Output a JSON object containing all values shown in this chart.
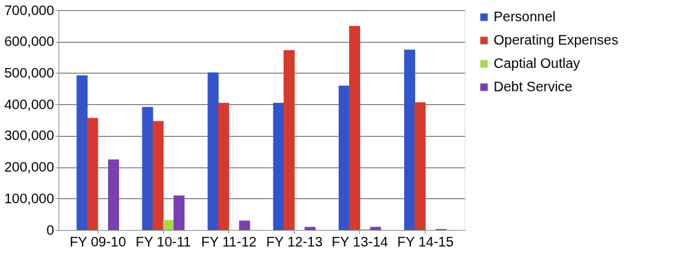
{
  "chart_data": {
    "type": "bar",
    "categories": [
      "FY 09-10",
      "FY 10-11",
      "FY 11-12",
      "FY 12-13",
      "FY 13-14",
      "FY 14-15"
    ],
    "series": [
      {
        "name": "Personnel",
        "color": "#3355cc",
        "values": [
          493000,
          392000,
          502000,
          405000,
          460000,
          575000
        ]
      },
      {
        "name": "Operating Expenses",
        "color": "#d63a2e",
        "values": [
          357000,
          347000,
          405000,
          573000,
          650000,
          407000
        ]
      },
      {
        "name": "Captial Outlay",
        "color": "#a8d84a",
        "values": [
          0,
          32000,
          0,
          0,
          3000,
          0
        ]
      },
      {
        "name": "Debt Service",
        "color": "#7a3fb0",
        "values": [
          225000,
          110000,
          30000,
          10000,
          10000,
          3000
        ]
      }
    ],
    "ylim": [
      0,
      700000
    ],
    "yticks": [
      {
        "value": 0,
        "label": "0"
      },
      {
        "value": 100000,
        "label": "100,000"
      },
      {
        "value": 200000,
        "label": "200,000"
      },
      {
        "value": 300000,
        "label": "300,000"
      },
      {
        "value": 400000,
        "label": "400,000"
      },
      {
        "value": 500000,
        "label": "500,000"
      },
      {
        "value": 600000,
        "label": "600,000"
      },
      {
        "value": 700000,
        "label": "700,000"
      }
    ],
    "grid": "y",
    "legend": "right"
  }
}
